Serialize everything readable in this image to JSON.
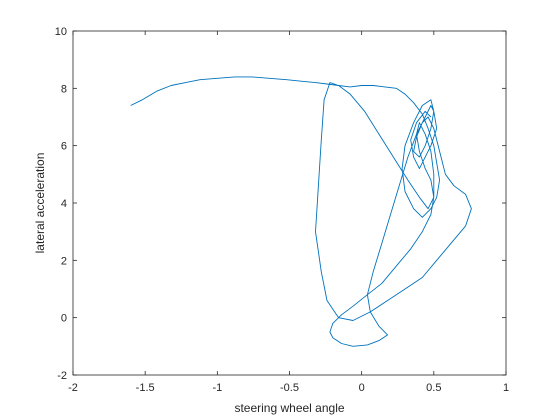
{
  "chart_data": {
    "type": "line",
    "title": "",
    "xlabel": "steering wheel angle",
    "ylabel": "lateral acceleration",
    "xlim": [
      -2,
      1
    ],
    "ylim": [
      -2,
      10
    ],
    "xticks": [
      -2,
      -1.5,
      -1,
      -0.5,
      0,
      0.5,
      1
    ],
    "xtick_labels": [
      "-2",
      "-1.5",
      "-1",
      "-0.5",
      "0",
      "0.5",
      "1"
    ],
    "yticks": [
      -2,
      0,
      2,
      4,
      6,
      8,
      10
    ],
    "ytick_labels": [
      "-2",
      "0",
      "2",
      "4",
      "6",
      "8",
      "10"
    ],
    "grid": false,
    "legend": "none",
    "series_color": "#0072BD",
    "series": [
      {
        "x": [
          -1.6,
          -1.52,
          -1.42,
          -1.32,
          -1.22,
          -1.12,
          -1.0,
          -0.88,
          -0.76,
          -0.64,
          -0.52,
          -0.42,
          -0.32,
          -0.24,
          -0.16,
          -0.08,
          0.0,
          0.08,
          0.16,
          0.24,
          0.3,
          0.36,
          0.42,
          0.46,
          0.5,
          0.52,
          0.54,
          0.52,
          0.48,
          0.42,
          0.36,
          0.3,
          0.28,
          0.3,
          0.36,
          0.42,
          0.48,
          0.5,
          0.48,
          0.44,
          0.4,
          0.36,
          0.38,
          0.42,
          0.46,
          0.5,
          0.54,
          0.58,
          0.64,
          0.72,
          0.76,
          0.72,
          0.62,
          0.52,
          0.42,
          0.3,
          0.18,
          0.06,
          -0.06,
          -0.16,
          -0.24,
          -0.28,
          -0.32,
          -0.3,
          -0.28,
          -0.26,
          -0.22,
          -0.16,
          -0.08,
          0.02,
          0.12,
          0.22,
          0.32,
          0.4,
          0.46,
          0.5,
          0.5,
          0.48,
          0.44,
          0.4,
          0.38,
          0.4,
          0.44,
          0.48,
          0.5,
          0.48,
          0.42,
          0.34,
          0.24,
          0.14,
          0.04,
          -0.06,
          -0.14,
          -0.2,
          -0.22,
          -0.2,
          -0.14,
          -0.06,
          0.04,
          0.12,
          0.18,
          0.12,
          0.06,
          0.04,
          0.08,
          0.14,
          0.2,
          0.26,
          0.32,
          0.38,
          0.44,
          0.48,
          0.5,
          0.52,
          0.48,
          0.44,
          0.4,
          0.36,
          0.34,
          0.38,
          0.44,
          0.48
        ],
        "y": [
          7.4,
          7.6,
          7.9,
          8.1,
          8.2,
          8.3,
          8.35,
          8.4,
          8.4,
          8.35,
          8.3,
          8.25,
          8.2,
          8.15,
          8.1,
          8.05,
          8.1,
          8.1,
          8.05,
          8.0,
          7.8,
          7.5,
          7.1,
          6.6,
          6.0,
          5.4,
          4.8,
          4.2,
          3.8,
          3.5,
          3.8,
          4.4,
          5.2,
          6.0,
          6.8,
          7.4,
          7.6,
          7.2,
          6.6,
          6.0,
          5.6,
          5.8,
          6.3,
          6.8,
          7.0,
          6.6,
          5.8,
          5.0,
          4.6,
          4.3,
          3.8,
          3.2,
          2.6,
          2.0,
          1.4,
          1.0,
          0.6,
          0.2,
          -0.1,
          0.0,
          0.6,
          1.6,
          3.0,
          4.6,
          6.2,
          7.6,
          8.2,
          8.1,
          7.8,
          7.2,
          6.4,
          5.6,
          4.8,
          4.2,
          3.8,
          4.2,
          5.0,
          5.8,
          6.4,
          6.8,
          6.4,
          5.8,
          5.2,
          4.8,
          4.2,
          3.6,
          3.0,
          2.4,
          1.8,
          1.2,
          0.8,
          0.4,
          0.1,
          -0.2,
          -0.5,
          -0.7,
          -0.9,
          -1.0,
          -0.95,
          -0.8,
          -0.6,
          -0.3,
          0.2,
          0.8,
          1.6,
          2.6,
          3.6,
          4.6,
          5.6,
          6.4,
          7.0,
          7.4,
          7.2,
          6.6,
          6.0,
          5.6,
          5.2,
          5.6,
          6.2,
          6.8,
          7.2,
          7.0
        ]
      }
    ]
  }
}
